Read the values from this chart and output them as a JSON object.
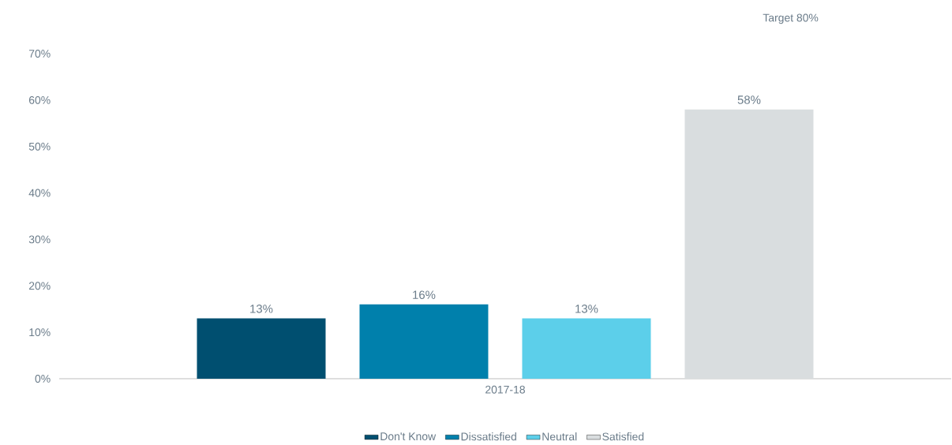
{
  "chart_data": {
    "type": "bar",
    "categories": [
      "2017-18"
    ],
    "series": [
      {
        "name": "Don't Know",
        "color": "#004f70",
        "values": [
          13
        ],
        "value_labels": [
          "13%"
        ]
      },
      {
        "name": "Dissatisfied",
        "color": "#0080ac",
        "values": [
          16
        ],
        "value_labels": [
          "16%"
        ]
      },
      {
        "name": "Neutral",
        "color": "#5ccfea",
        "values": [
          13
        ],
        "value_labels": [
          "13%"
        ]
      },
      {
        "name": "Satisfied",
        "color": "#d9dddf",
        "values": [
          58
        ],
        "value_labels": [
          "58%"
        ]
      }
    ],
    "ylim": [
      0,
      70
    ],
    "yticks": [
      {
        "value": 0,
        "label": "0%"
      },
      {
        "value": 10,
        "label": "10%"
      },
      {
        "value": 20,
        "label": "20%"
      },
      {
        "value": 30,
        "label": "30%"
      },
      {
        "value": 40,
        "label": "40%"
      },
      {
        "value": 50,
        "label": "50%"
      },
      {
        "value": 60,
        "label": "60%"
      },
      {
        "value": 70,
        "label": "70%"
      }
    ],
    "annotations": [
      "Target 80%"
    ],
    "legend": "bottom",
    "grid": false
  }
}
